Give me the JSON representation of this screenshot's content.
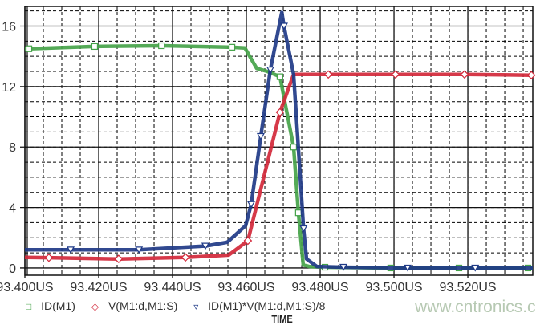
{
  "chart_data": {
    "type": "line",
    "xlabel": "TIME",
    "ylabel": "",
    "xlim": [
      93.4,
      93.5376
    ],
    "ylim": [
      -0.48,
      17.3
    ],
    "x_ticks": [
      "93.400US",
      "93.420US",
      "93.440US",
      "93.460US",
      "93.480US",
      "93.500US",
      "93.520US"
    ],
    "x_tick_values": [
      93.4,
      93.42,
      93.44,
      93.46,
      93.48,
      93.5,
      93.52
    ],
    "y_ticks": [
      "0",
      "4",
      "8",
      "12",
      "16"
    ],
    "y_tick_values": [
      0,
      4,
      8,
      12,
      16
    ],
    "grid": true,
    "legend_position": "bottom-left",
    "series": [
      {
        "name": "ID(M1)",
        "color": "#45a349",
        "marker": "square",
        "symbol": "□",
        "x": [
          93.4,
          93.4011,
          93.4189,
          93.437,
          93.4561,
          93.4596,
          93.4628,
          93.4657,
          93.4691,
          93.4728,
          93.4741,
          93.4754,
          93.477,
          93.4813,
          93.4991,
          93.5176,
          93.5363,
          93.5376
        ],
        "y": [
          14.5,
          14.5,
          14.65,
          14.7,
          14.6,
          14.55,
          13.2,
          13.0,
          12.65,
          8.0,
          3.65,
          0.2,
          0.1,
          0.05,
          0.0,
          0.0,
          0.0,
          0.0
        ],
        "markers": [
          93.4011,
          93.4189,
          93.437,
          93.4561,
          93.4691,
          93.4728,
          93.4741,
          93.4813,
          93.4991,
          93.5176,
          93.5363
        ]
      },
      {
        "name": "V(M1:d,M1:S)",
        "color": "#d3283a",
        "marker": "diamond",
        "symbol": "◇",
        "x": [
          93.4,
          93.4065,
          93.4254,
          93.4435,
          93.4552,
          93.4604,
          93.4691,
          93.4728,
          93.4822,
          93.5004,
          93.5191,
          93.5372
        ],
        "y": [
          0.7,
          0.68,
          0.6,
          0.7,
          0.85,
          1.8,
          10.3,
          12.8,
          12.8,
          12.8,
          12.8,
          12.75
        ],
        "markers": [
          93.4065,
          93.4254,
          93.4435,
          93.4604,
          93.4691,
          93.4822,
          93.5004,
          93.5191,
          93.5372
        ]
      },
      {
        "name": "ID(M1)*V(M1:d,M1:S)/8",
        "color": "#1f3a87",
        "marker": "triangle-down",
        "symbol": "▿",
        "x": [
          93.4,
          93.4124,
          93.4309,
          93.4489,
          93.4548,
          93.4598,
          93.4613,
          93.4639,
          93.4665,
          93.4696,
          93.4702,
          93.4728,
          93.4746,
          93.4755,
          93.4763,
          93.4791,
          93.4863,
          93.5037,
          93.522,
          93.5376
        ],
        "y": [
          1.2,
          1.2,
          1.2,
          1.45,
          1.7,
          2.8,
          4.2,
          8.7,
          13.1,
          16.9,
          16.0,
          12.8,
          6.0,
          2.6,
          0.6,
          0.1,
          0.05,
          0.0,
          0.0,
          0.0
        ],
        "markers": [
          93.4124,
          93.4309,
          93.4489,
          93.4613,
          93.4639,
          93.4665,
          93.4702,
          93.4755,
          93.4863,
          93.5037,
          93.522
        ]
      }
    ]
  },
  "watermark": "www.cntronics.com"
}
